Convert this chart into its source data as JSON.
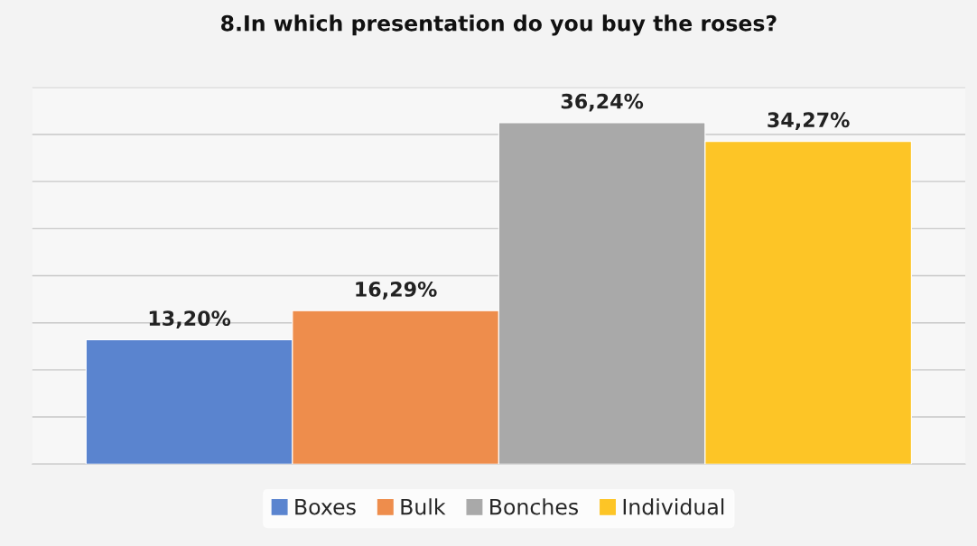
{
  "chart_data": {
    "type": "bar",
    "title": "8.In which presentation do you buy the roses?",
    "categories": [
      null
    ],
    "series": [
      {
        "name": "Boxes",
        "color": "#5a84cf",
        "values": [
          13.2
        ],
        "value_labels": [
          "13,20%"
        ]
      },
      {
        "name": "Bulk",
        "color": "#ee8d4c",
        "values": [
          16.29
        ],
        "value_labels": [
          "16,29%"
        ]
      },
      {
        "name": "Bonches",
        "color": "#a9a9a9",
        "values": [
          36.24
        ],
        "value_labels": [
          "36,24%"
        ]
      },
      {
        "name": "Individual",
        "color": "#fdc526",
        "values": [
          34.27
        ],
        "value_labels": [
          "34,27%"
        ]
      }
    ],
    "ylim": [
      0,
      40
    ],
    "yticks": [
      {
        "value": 0,
        "label": null
      },
      {
        "value": 5,
        "label": null
      },
      {
        "value": 10,
        "label": null
      },
      {
        "value": 15,
        "label": null
      },
      {
        "value": 20,
        "label": null
      },
      {
        "value": 25,
        "label": null
      },
      {
        "value": 30,
        "label": null
      },
      {
        "value": 35,
        "label": null
      },
      {
        "value": 40,
        "label": null
      }
    ],
    "grid": "y",
    "legend": "bottom"
  }
}
